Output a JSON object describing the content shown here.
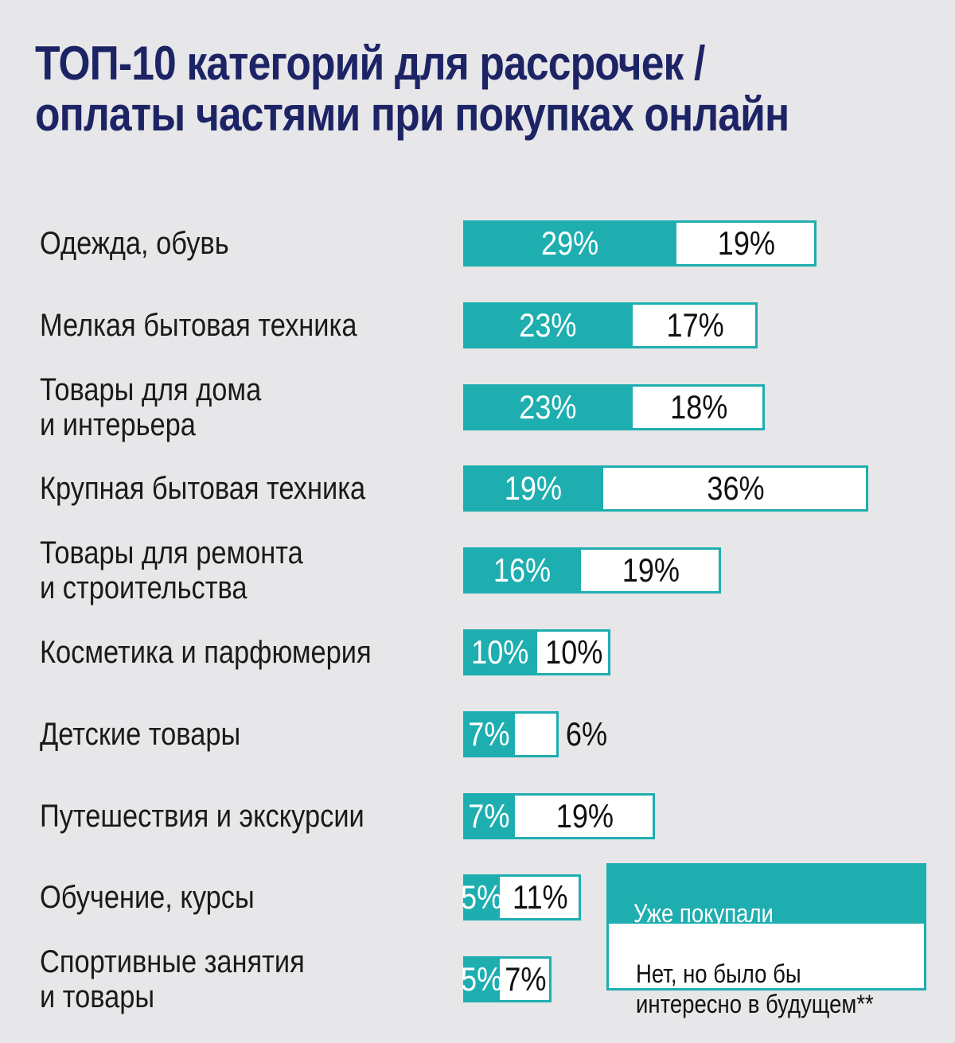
{
  "title_line1": "ТОП-10 категорий для рассрочек /",
  "title_line2": "оплаты частями при покупках онлайн",
  "colors": {
    "accent": "#1eaeb0",
    "title": "#1d2465",
    "background": "#e7e6e8"
  },
  "chart_data": {
    "type": "bar",
    "orientation": "horizontal",
    "stacked": true,
    "categories": [
      "Одежда, обувь",
      "Мелкая бытовая техника",
      "Товары для дома\nи интерьера",
      "Крупная бытовая техника",
      "Товары для ремонта\nи строительства",
      "Косметика и парфюмерия",
      "Детские товары",
      "Путешествия и экскурсии",
      "Обучение, курсы",
      "Спортивные занятия\nи товары"
    ],
    "series": [
      {
        "name": "Уже покупали\nв рассрочку*",
        "values": [
          29,
          23,
          23,
          19,
          16,
          10,
          7,
          7,
          5,
          5
        ],
        "color": "#1eaeb0"
      },
      {
        "name": "Нет, но было бы\nинтересно в будущем**",
        "values": [
          19,
          17,
          18,
          36,
          19,
          10,
          6,
          19,
          11,
          7
        ],
        "color": "#ffffff"
      }
    ],
    "value_suffix": "%",
    "legend_position": "bottom-right"
  }
}
